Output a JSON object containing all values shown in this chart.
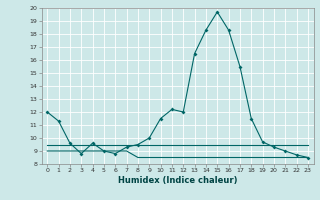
{
  "xlabel": "Humidex (Indice chaleur)",
  "ylabel": "",
  "bg_color": "#cde8e8",
  "grid_color": "#ffffff",
  "line_color": "#006666",
  "ylim": [
    8,
    20
  ],
  "xlim": [
    -0.5,
    23.5
  ],
  "yticks": [
    8,
    9,
    10,
    11,
    12,
    13,
    14,
    15,
    16,
    17,
    18,
    19,
    20
  ],
  "xticks": [
    0,
    1,
    2,
    3,
    4,
    5,
    6,
    7,
    8,
    9,
    10,
    11,
    12,
    13,
    14,
    15,
    16,
    17,
    18,
    19,
    20,
    21,
    22,
    23
  ],
  "line1_x": [
    0,
    1,
    2,
    3,
    4,
    5,
    6,
    7,
    8,
    9,
    10,
    11,
    12,
    13,
    14,
    15,
    16,
    17,
    18,
    19,
    20,
    21,
    22,
    23
  ],
  "line1_y": [
    12.0,
    11.3,
    9.6,
    8.8,
    9.6,
    9.0,
    8.8,
    9.3,
    9.5,
    10.0,
    11.5,
    12.2,
    12.0,
    16.5,
    18.3,
    19.7,
    18.3,
    15.5,
    11.5,
    9.7,
    9.3,
    9.0,
    8.7,
    8.5
  ],
  "line2_x": [
    0,
    1,
    2,
    3,
    4,
    5,
    6,
    7,
    8,
    9,
    10,
    11,
    12,
    13,
    14,
    15,
    16,
    17,
    18,
    19,
    20,
    21,
    22,
    23
  ],
  "line2_y": [
    9.5,
    9.5,
    9.5,
    9.5,
    9.5,
    9.5,
    9.5,
    9.5,
    9.5,
    9.5,
    9.5,
    9.5,
    9.5,
    9.5,
    9.5,
    9.5,
    9.5,
    9.5,
    9.5,
    9.5,
    9.5,
    9.5,
    9.5,
    9.5
  ],
  "line3_x": [
    0,
    1,
    2,
    3,
    4,
    5,
    6,
    7,
    8,
    9,
    10,
    11,
    12,
    13,
    14,
    15,
    16,
    17,
    18,
    19,
    20,
    21,
    22,
    23
  ],
  "line3_y": [
    9.0,
    9.0,
    9.0,
    9.0,
    9.0,
    9.0,
    9.0,
    9.0,
    8.5,
    8.5,
    8.5,
    8.5,
    8.5,
    8.5,
    8.5,
    8.5,
    8.5,
    8.5,
    8.5,
    8.5,
    8.5,
    8.5,
    8.5,
    8.5
  ],
  "xlabel_fontsize": 6,
  "xlabel_color": "#004444",
  "tick_fontsize": 4.5,
  "linewidth": 0.8,
  "markersize": 2
}
